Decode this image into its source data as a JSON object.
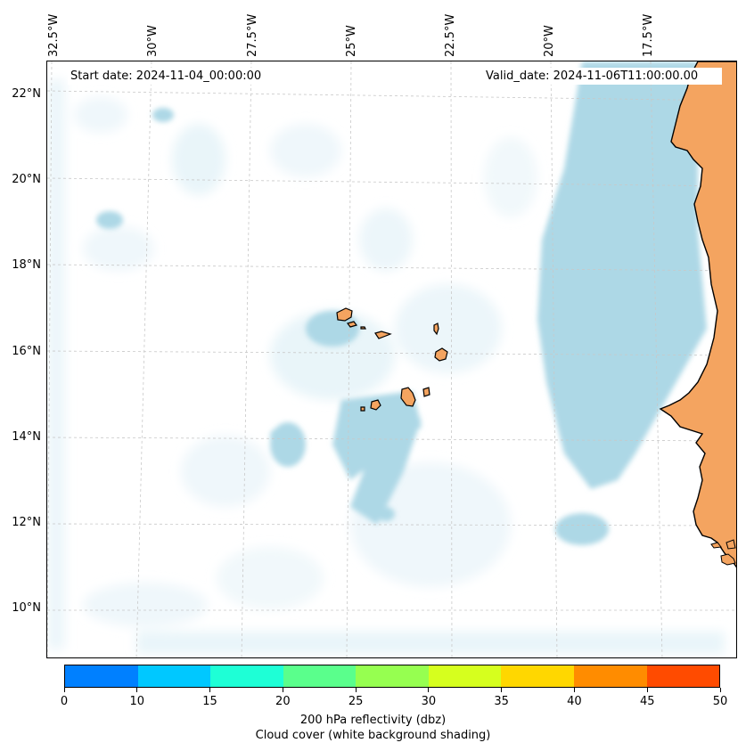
{
  "header": {
    "start_date": "Start date: 2024-11-04_00:00:00",
    "valid_date": "Valid_date: 2024-11-06T11:00:00.00"
  },
  "map": {
    "lon_labels": [
      "32.5°W",
      "30°W",
      "27.5°W",
      "25°W",
      "22.5°W",
      "20°W",
      "17.5°W"
    ],
    "lat_labels": [
      "22°N",
      "20°N",
      "18°N",
      "16°N",
      "14°N",
      "12°N",
      "10°N"
    ],
    "colors": {
      "land": "#f4a460",
      "cloud_dense": "#add8e6",
      "cloud_light": "#e4f2f8",
      "gridline": "#c8c8c8",
      "coastline": "#000000"
    }
  },
  "colorbar": {
    "ticks": [
      "0",
      "10",
      "15",
      "20",
      "25",
      "30",
      "35",
      "40",
      "45",
      "50"
    ],
    "colors": [
      "#0080ff",
      "#00c8ff",
      "#1effd6",
      "#5aff8c",
      "#96ff50",
      "#d6ff1e",
      "#ffd700",
      "#ff8c00",
      "#ff4b00"
    ],
    "title_line1": "200 hPa reflectivity (dbz)",
    "title_line2": "Cloud cover (white background shading)"
  }
}
